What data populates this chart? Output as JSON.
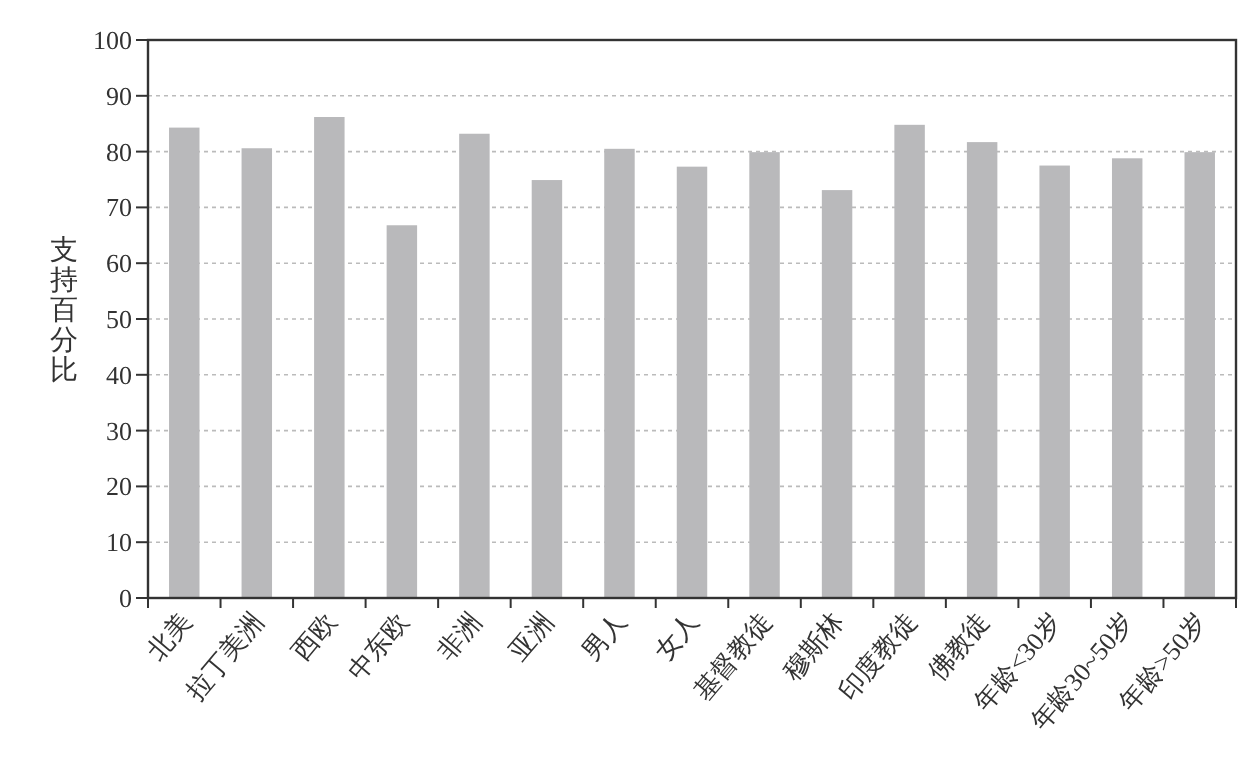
{
  "chart_data": {
    "type": "bar",
    "ylabel": "支持百分比",
    "categories": [
      "北美",
      "拉丁美洲",
      "西欧",
      "中东欧",
      "非洲",
      "亚洲",
      "男人",
      "女人",
      "基督教徒",
      "穆斯林",
      "印度教徒",
      "佛教徒",
      "年龄<30岁",
      "年龄30~50岁",
      "年龄>50岁"
    ],
    "values": [
      84.3,
      80.6,
      86.2,
      66.8,
      83.2,
      74.9,
      80.5,
      77.3,
      79.9,
      73.1,
      84.8,
      81.7,
      77.5,
      78.8,
      79.9
    ],
    "color": "#b9b9bb",
    "ylim": [
      0,
      100
    ],
    "yticks": [
      0,
      10,
      20,
      30,
      40,
      50,
      60,
      70,
      80,
      90,
      100
    ],
    "grid": "y"
  }
}
